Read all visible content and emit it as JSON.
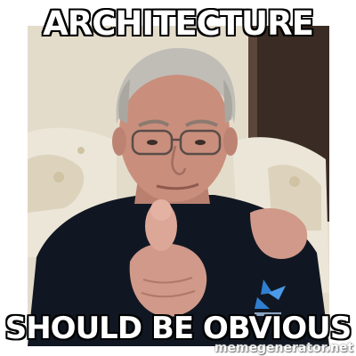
{
  "meme": {
    "top_text": "ARCHITECTURE",
    "bottom_text": "SHOULD BE OBVIOUS",
    "watermark": "memegenerator.net"
  },
  "colors": {
    "caption_fill": "#ffffff",
    "caption_stroke": "#000000",
    "shirt": "#111722",
    "chair": "#ece6d8",
    "wall": "#e4dccb",
    "curtain": "#3a2c24",
    "hair": "#bfbdb6",
    "skin": "#c98e7c",
    "logo": "#2f7fd0"
  }
}
